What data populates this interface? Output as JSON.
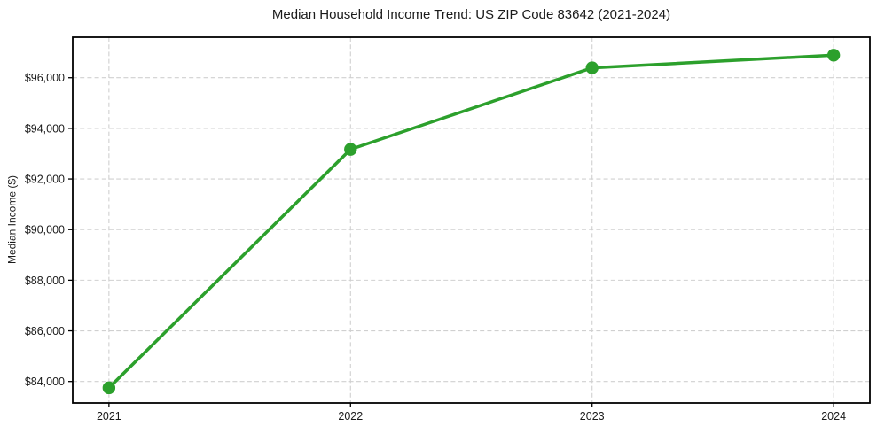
{
  "chart_data": {
    "type": "line",
    "title": "Median Household Income Trend: US ZIP Code 83642 (2021-2024)",
    "xlabel": "",
    "ylabel": "Median Income ($)",
    "x": [
      2021,
      2022,
      2023,
      2024
    ],
    "xtick_labels": [
      "2021",
      "2022",
      "2023",
      "2024"
    ],
    "values": [
      83750,
      93170,
      96390,
      96890
    ],
    "series": [
      {
        "name": "Median household income",
        "values": [
          83750,
          93170,
          96390,
          96890
        ]
      }
    ],
    "yticks": [
      84000,
      86000,
      88000,
      90000,
      92000,
      94000,
      96000
    ],
    "ytick_labels": [
      "$84,000",
      "$86,000",
      "$88,000",
      "$90,000",
      "$92,000",
      "$94,000",
      "$96,000"
    ],
    "xlim": [
      2020.85,
      2024.15
    ],
    "ylim": [
      83150,
      97600
    ],
    "grid": true,
    "grid_style": "dashed",
    "legend_position": "none",
    "line_color": "#2ca02c",
    "marker": "circle",
    "grid_color": "#d0d0d0",
    "axis_color": "#000000",
    "tick_label_color": "#1a1a1a",
    "background_color": "#ffffff"
  }
}
